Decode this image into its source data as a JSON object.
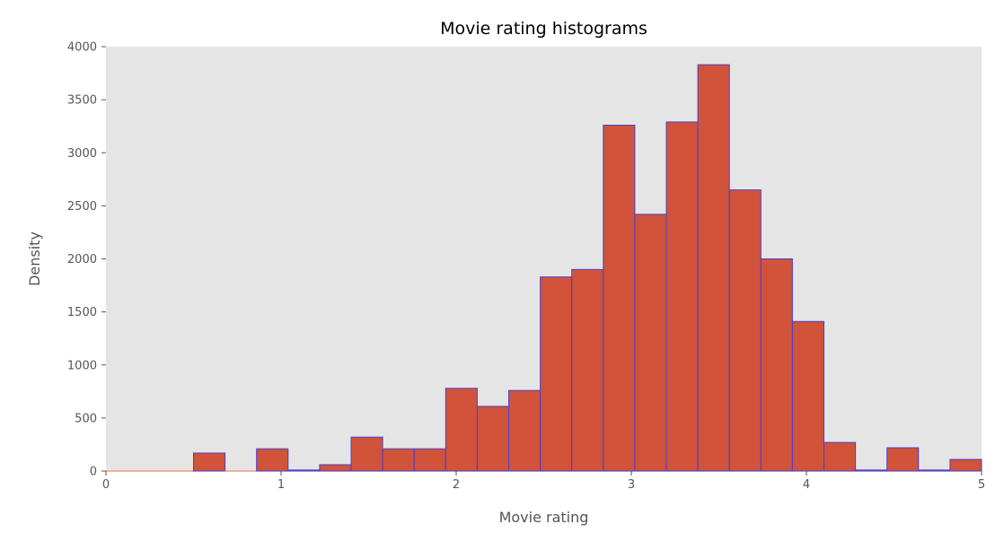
{
  "chart_data": {
    "type": "bar",
    "title": "Movie rating histograms",
    "xlabel": "Movie rating",
    "ylabel": "Density",
    "xlim": [
      0,
      5
    ],
    "ylim": [
      0,
      4000
    ],
    "xticks": [
      "0",
      "1",
      "2",
      "3",
      "4",
      "5"
    ],
    "yticks": [
      "0",
      "500",
      "1000",
      "1500",
      "2000",
      "2500",
      "3000",
      "3500",
      "4000"
    ],
    "bins": [
      {
        "x0": 0.0,
        "x1": 0.5,
        "value": 0
      },
      {
        "x0": 0.5,
        "x1": 0.68,
        "value": 170
      },
      {
        "x0": 0.68,
        "x1": 0.86,
        "value": 0
      },
      {
        "x0": 0.86,
        "x1": 1.04,
        "value": 210
      },
      {
        "x0": 1.04,
        "x1": 1.22,
        "value": 10
      },
      {
        "x0": 1.22,
        "x1": 1.4,
        "value": 60
      },
      {
        "x0": 1.4,
        "x1": 1.58,
        "value": 320
      },
      {
        "x0": 1.58,
        "x1": 1.76,
        "value": 210
      },
      {
        "x0": 1.76,
        "x1": 1.94,
        "value": 210
      },
      {
        "x0": 1.94,
        "x1": 2.12,
        "value": 780
      },
      {
        "x0": 2.12,
        "x1": 2.3,
        "value": 610
      },
      {
        "x0": 2.3,
        "x1": 2.48,
        "value": 760
      },
      {
        "x0": 2.48,
        "x1": 2.66,
        "value": 1830
      },
      {
        "x0": 2.66,
        "x1": 2.84,
        "value": 1900
      },
      {
        "x0": 2.84,
        "x1": 3.02,
        "value": 3260
      },
      {
        "x0": 3.02,
        "x1": 3.2,
        "value": 2420
      },
      {
        "x0": 3.2,
        "x1": 3.38,
        "value": 3290
      },
      {
        "x0": 3.38,
        "x1": 3.56,
        "value": 3830
      },
      {
        "x0": 3.56,
        "x1": 3.74,
        "value": 2650
      },
      {
        "x0": 3.74,
        "x1": 3.92,
        "value": 2000
      },
      {
        "x0": 3.92,
        "x1": 4.1,
        "value": 1410
      },
      {
        "x0": 4.1,
        "x1": 4.28,
        "value": 270
      },
      {
        "x0": 4.28,
        "x1": 4.46,
        "value": 10
      },
      {
        "x0": 4.46,
        "x1": 4.64,
        "value": 220
      },
      {
        "x0": 4.64,
        "x1": 4.82,
        "value": 10
      },
      {
        "x0": 4.82,
        "x1": 5.0,
        "value": 110
      }
    ],
    "grid": false,
    "colors": {
      "bar_fill": "#d0533a",
      "bar_edge": "#4a3fcf",
      "plot_background": "#e5e5e5",
      "zero_line": "#f0a070"
    }
  }
}
